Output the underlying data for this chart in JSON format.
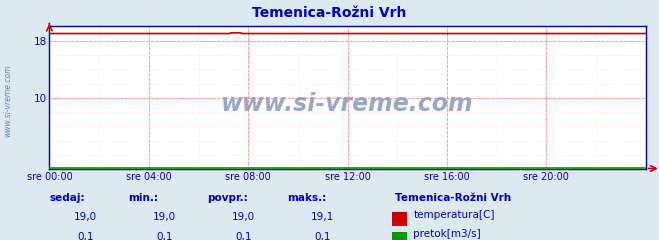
{
  "title": "Temenica-Rožni Vrh",
  "title_color": "#0000cc",
  "bg_color": "#dce9f0",
  "plot_bg_color": "#ffffff",
  "grid_color_major": "#ff6666",
  "grid_color_minor": "#ffcccc",
  "x_tick_labels": [
    "sre 00:00",
    "sre 04:00",
    "sre 08:00",
    "sre 12:00",
    "sre 16:00",
    "sre 20:00"
  ],
  "x_tick_positions": [
    0,
    4,
    8,
    12,
    16,
    20
  ],
  "x_min": 0,
  "x_max": 24,
  "y_min": 0,
  "y_max": 20,
  "y_ticks": [
    10,
    18
  ],
  "temp_color": "#cc0000",
  "flow_color": "#009900",
  "watermark": "www.si-vreme.com",
  "watermark_color": "#8899bb",
  "sidebar_text": "www.si-vreme.com",
  "sidebar_color": "#6688aa",
  "temp_value": 19.0,
  "temp_min": 19.0,
  "temp_avg": 19.0,
  "temp_max": 19.1,
  "flow_value": 0.1,
  "flow_min": 0.1,
  "flow_avg": 0.1,
  "flow_max": 0.1,
  "legend_title": "Temenica-Rožni Vrh",
  "label_color": "#0000cc",
  "footer_label1": "sedaj:",
  "footer_label2": "min.:",
  "footer_label3": "povpr.:",
  "footer_label4": "maks.:",
  "temp_line_y": 19.0,
  "flow_line_y": 0.1,
  "temp_spike_x": 7.5,
  "temp_spike_y": 19.1,
  "arrow_color": "#cc0000",
  "axis_color": "#0000aa"
}
